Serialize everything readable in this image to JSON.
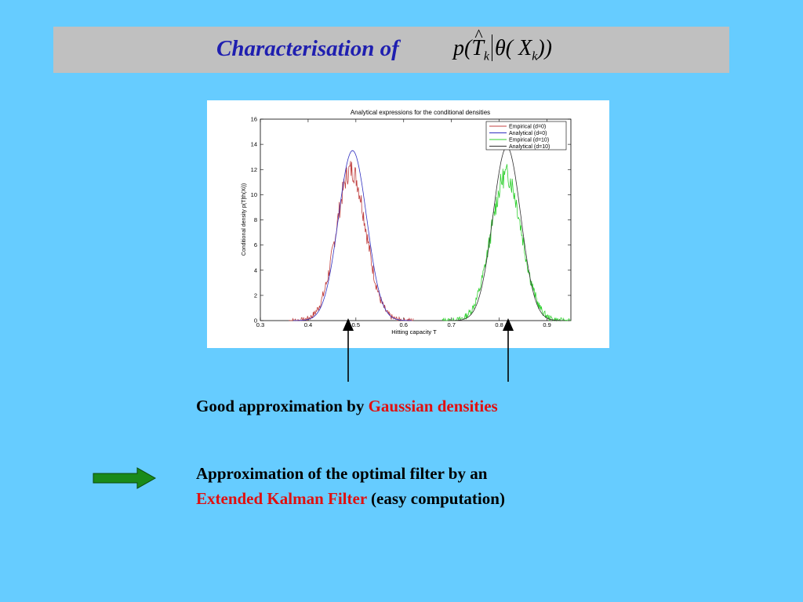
{
  "slide": {
    "title": "Characterisation of",
    "formula": {
      "p": "p(",
      "T": "T",
      "k1": "k",
      "theta": "θ(",
      "X": "X",
      "k2": "k",
      "close": "))"
    },
    "statement1": {
      "prefix": "Good approximation by ",
      "highlight": "Gaussian densities"
    },
    "statement2": {
      "line1": "Approximation of the optimal filter by an",
      "highlight": "Extended Kalman Filter",
      "suffix": " (easy computation)"
    }
  },
  "colors": {
    "background": "#66ccff",
    "title_bar": "#c0c0c0",
    "title_text": "#1f1fb0",
    "highlight": "#e01010",
    "arrow_green": "#1a8a1a"
  },
  "chart_data": {
    "type": "line",
    "title": "Analytical expressions for the conditional densities",
    "xlabel": "Hitting capacity T",
    "ylabel": "Conditional density p(T|th(Xi))",
    "xlim": [
      0.3,
      0.95
    ],
    "ylim": [
      0,
      16
    ],
    "xticks": [
      "0.3",
      "0.4",
      "0.5",
      "0.6",
      "0.7",
      "0.8",
      "0.9"
    ],
    "yticks": [
      "0",
      "2",
      "4",
      "6",
      "8",
      "10",
      "12",
      "14",
      "16"
    ],
    "legend_position": "top-right",
    "series": [
      {
        "name": "Empirical (d=0)",
        "kind": "empirical",
        "color": "#c04040",
        "mean": 0.49,
        "sd": 0.031,
        "peak": 12.0,
        "noise": 0.9,
        "seed": 7
      },
      {
        "name": "Analytical (d=0)",
        "kind": "analytical",
        "color": "#3030c0",
        "mean": 0.493,
        "sd": 0.0295,
        "peak": 13.5
      },
      {
        "name": "Empirical (d=10)",
        "kind": "empirical",
        "color": "#30d030",
        "mean": 0.815,
        "sd": 0.032,
        "peak": 11.6,
        "noise": 0.9,
        "seed": 13
      },
      {
        "name": "Analytical (d=10)",
        "kind": "analytical",
        "color": "#303030",
        "mean": 0.816,
        "sd": 0.029,
        "peak": 13.8
      }
    ],
    "arrows_at_x": [
      0.485,
      0.82
    ]
  }
}
